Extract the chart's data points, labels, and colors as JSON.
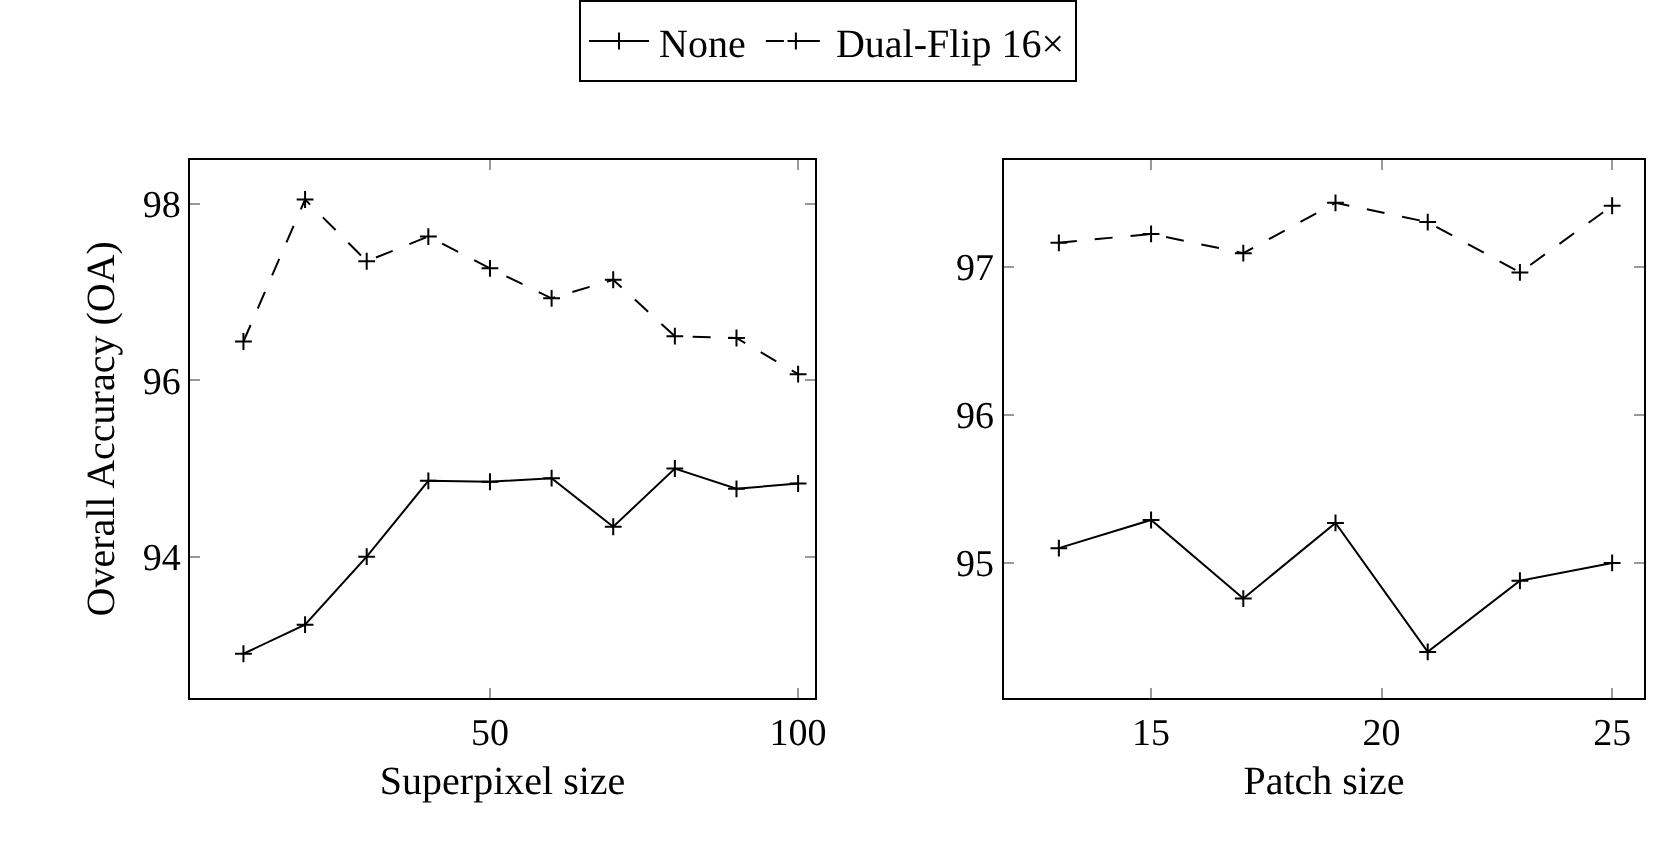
{
  "chart_data": [
    {
      "type": "line",
      "xlabel": "Superpixel size",
      "ylabel": "Overall Accuracy (OA)",
      "x": [
        10,
        20,
        30,
        40,
        50,
        60,
        70,
        80,
        90,
        100
      ],
      "xlim": [
        1.4,
        102.7
      ],
      "xticks": [
        50,
        100
      ],
      "ylim": [
        92.4,
        98.5
      ],
      "yticks": [
        94,
        96,
        98
      ],
      "legend": "top",
      "marker": "cross",
      "series": [
        {
          "name": "None",
          "color": "#000000",
          "line_style": "solid",
          "values": [
            92.9,
            93.23,
            94.0,
            94.86,
            94.85,
            94.89,
            94.34,
            95.0,
            94.77,
            94.83
          ]
        },
        {
          "name": "Dual-Flip 16×",
          "color": "#000000",
          "line_style": "dashed",
          "values": [
            96.44,
            98.05,
            97.35,
            97.63,
            97.27,
            96.93,
            97.14,
            96.5,
            96.48,
            96.07
          ]
        }
      ]
    },
    {
      "type": "line",
      "xlabel": "Patch size",
      "x": [
        13,
        15,
        17,
        19,
        21,
        23,
        25
      ],
      "xlim": [
        11.8,
        25.7
      ],
      "xticks": [
        15,
        20,
        25
      ],
      "ylim": [
        94.09,
        97.72
      ],
      "yticks": [
        95,
        96,
        97
      ],
      "legend": "top",
      "marker": "cross",
      "series": [
        {
          "name": "None",
          "color": "#000000",
          "line_style": "solid",
          "values": [
            95.1,
            95.29,
            94.76,
            95.27,
            94.4,
            94.88,
            95.0
          ]
        },
        {
          "name": "Dual-Flip 16×",
          "color": "#000000",
          "line_style": "dashed",
          "values": [
            97.16,
            97.22,
            97.09,
            97.43,
            97.3,
            96.96,
            97.41
          ]
        }
      ]
    }
  ]
}
